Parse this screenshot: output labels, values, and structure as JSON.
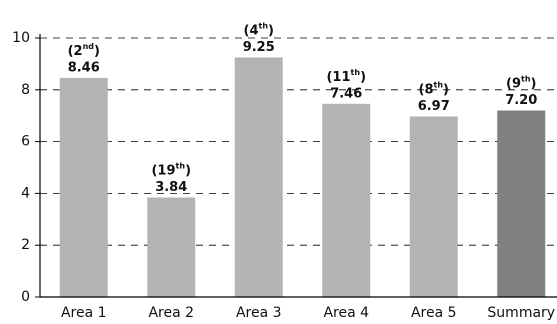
{
  "chart_data": {
    "type": "bar",
    "categories": [
      "Area 1",
      "Area 2",
      "Area 3",
      "Area 4",
      "Area 5",
      "Summary"
    ],
    "values": [
      8.46,
      3.84,
      9.25,
      7.46,
      6.97,
      7.2
    ],
    "value_labels": [
      "8.46",
      "3.84",
      "9.25",
      "7.46",
      "6.97",
      "7.20"
    ],
    "rank_labels": [
      [
        "(2",
        "nd",
        ")"
      ],
      [
        "(19",
        "th",
        ")"
      ],
      [
        "(4",
        "th",
        ")"
      ],
      [
        "(11",
        "th",
        ")"
      ],
      [
        "(8",
        "th",
        ")"
      ],
      [
        "(9",
        "th",
        ")"
      ]
    ],
    "colors": [
      "#b3b3b5",
      "#b3b3b5",
      "#b3b3b5",
      "#b3b3b5",
      "#b3b3b5",
      "#808083"
    ],
    "ylim": [
      0,
      10
    ],
    "yticks": [
      0,
      2,
      4,
      6,
      8,
      10
    ],
    "grid": true
  }
}
